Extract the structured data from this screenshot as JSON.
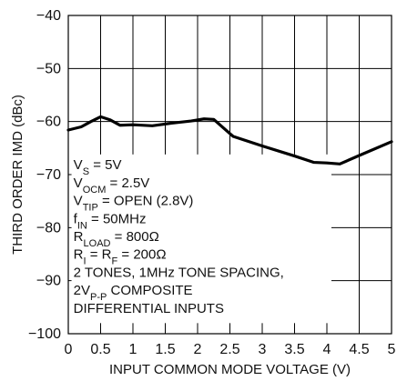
{
  "chart_data": {
    "type": "line",
    "title": "",
    "xlabel": "INPUT COMMON MODE VOLTAGE (V)",
    "ylabel": "THIRD ORDER IMD (dBc)",
    "xlim": [
      0,
      5
    ],
    "ylim": [
      -100,
      -40
    ],
    "x_ticks": [
      "0",
      "0.5",
      "1",
      "1.5",
      "2",
      "2.5",
      "3",
      "3.5",
      "4",
      "4.5",
      "5"
    ],
    "y_ticks": [
      "−40",
      "−50",
      "−60",
      "−70",
      "−80",
      "−90",
      "−100"
    ],
    "grid": true,
    "legend": "none",
    "series": [
      {
        "points": [
          {
            "x": 0.0,
            "y": -61.6
          },
          {
            "x": 0.2,
            "y": -61.0
          },
          {
            "x": 0.35,
            "y": -60.0
          },
          {
            "x": 0.5,
            "y": -59.1
          },
          {
            "x": 0.65,
            "y": -59.7
          },
          {
            "x": 0.8,
            "y": -60.7
          },
          {
            "x": 1.0,
            "y": -60.6
          },
          {
            "x": 1.3,
            "y": -60.8
          },
          {
            "x": 1.6,
            "y": -60.3
          },
          {
            "x": 1.9,
            "y": -59.9
          },
          {
            "x": 2.1,
            "y": -59.5
          },
          {
            "x": 2.25,
            "y": -59.6
          },
          {
            "x": 2.4,
            "y": -61.2
          },
          {
            "x": 2.55,
            "y": -62.8
          },
          {
            "x": 3.0,
            "y": -64.6
          },
          {
            "x": 3.5,
            "y": -66.5
          },
          {
            "x": 3.8,
            "y": -67.7
          },
          {
            "x": 4.0,
            "y": -67.8
          },
          {
            "x": 4.2,
            "y": -68.0
          },
          {
            "x": 4.5,
            "y": -66.4
          },
          {
            "x": 5.0,
            "y": -63.8
          }
        ]
      }
    ],
    "annotation_lines": [
      "VS = 5V",
      "VOCM = 2.5V",
      "VTIP = OPEN (2.8V)",
      "fIN = 50MHz",
      "RLOAD = 800Ω",
      "RI = RF = 200Ω",
      "2 TONES, 1MHz TONE SPACING,",
      "2VP-P COMPOSITE",
      "DIFFERENTIAL INPUTS"
    ],
    "annotation_box_width_v": 4.02,
    "colors": {
      "background": "#ffffff",
      "grid": "#000000",
      "line": "#000000",
      "text": "#111111"
    }
  }
}
